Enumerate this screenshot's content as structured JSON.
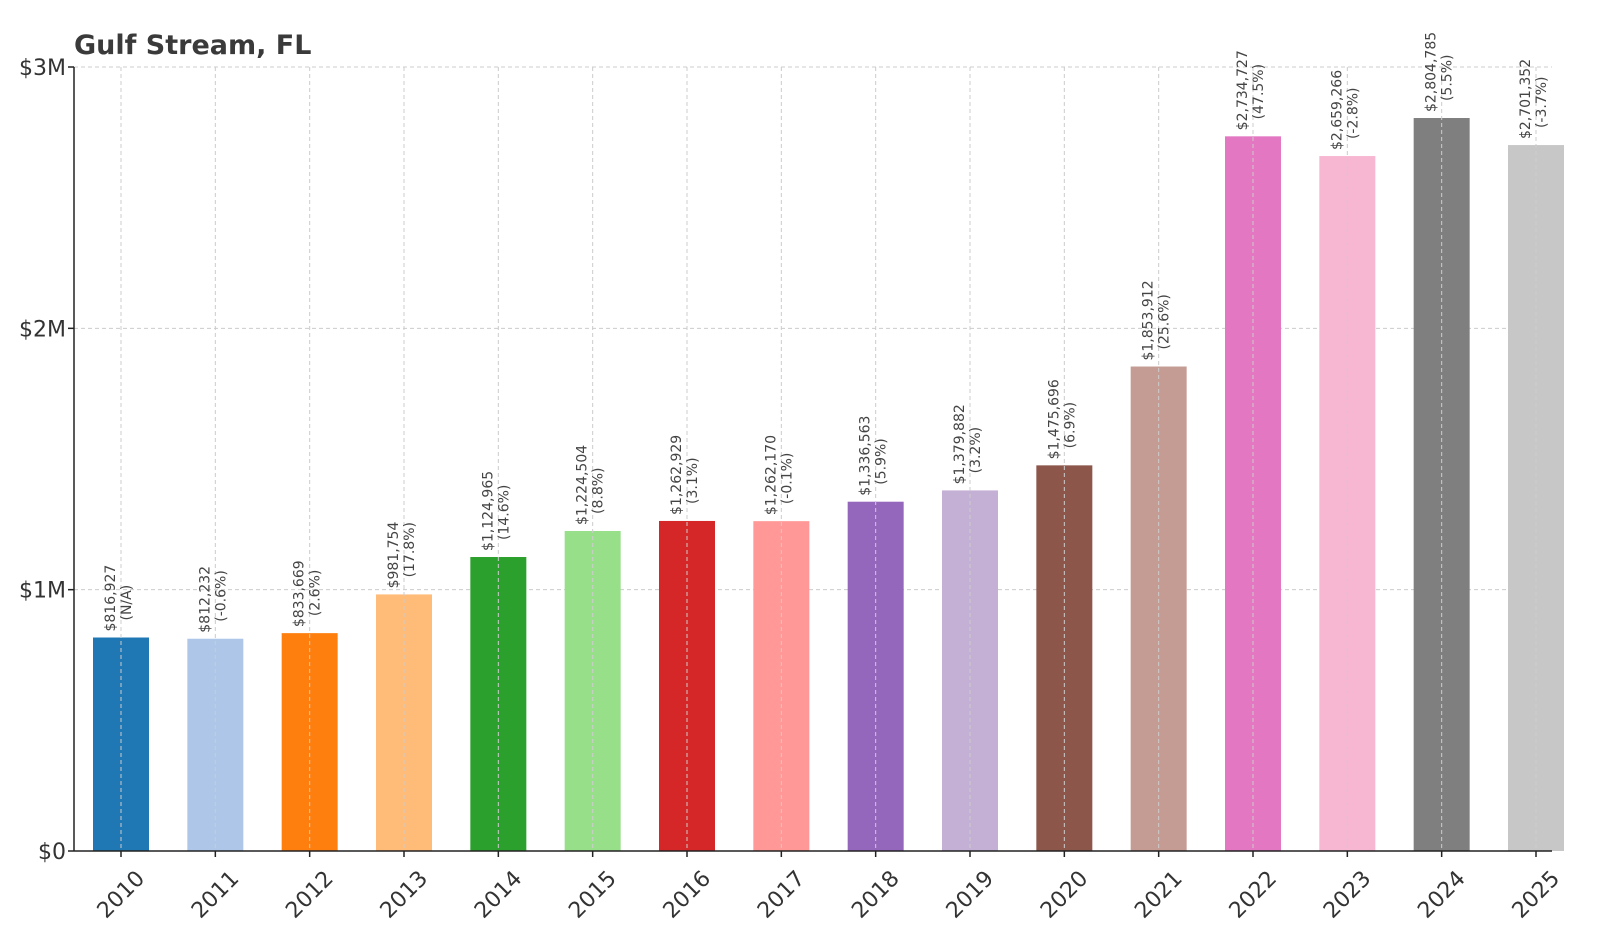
{
  "chart_data": {
    "type": "bar",
    "title": "Gulf Stream, FL",
    "xlabel": "",
    "ylabel": "",
    "categories": [
      "2010",
      "2011",
      "2012",
      "2013",
      "2014",
      "2015",
      "2016",
      "2017",
      "2018",
      "2019",
      "2020",
      "2021",
      "2022",
      "2023",
      "2024",
      "2025"
    ],
    "values": [
      816927,
      812232,
      833669,
      981754,
      1124965,
      1224504,
      1262929,
      1262170,
      1336563,
      1379882,
      1475696,
      1853912,
      2734727,
      2659266,
      2804785,
      2701352
    ],
    "value_labels": [
      "$816,927",
      "$812,232",
      "$833,669",
      "$981,754",
      "$1,124,965",
      "$1,224,504",
      "$1,262,929",
      "$1,262,170",
      "$1,336,563",
      "$1,379,882",
      "$1,475,696",
      "$1,853,912",
      "$2,734,727",
      "$2,659,266",
      "$2,804,785",
      "$2,701,352"
    ],
    "change_labels": [
      "(N/A)",
      "(-0.6%)",
      "(2.6%)",
      "(17.8%)",
      "(14.6%)",
      "(8.8%)",
      "(3.1%)",
      "(-0.1%)",
      "(5.9%)",
      "(3.2%)",
      "(6.9%)",
      "(25.6%)",
      "(47.5%)",
      "(-2.8%)",
      "(5.5%)",
      "(-3.7%)"
    ],
    "colors": [
      "#1f77b4",
      "#aec7e8",
      "#ff7f0e",
      "#ffbb78",
      "#2ca02c",
      "#98df8a",
      "#d62728",
      "#ff9896",
      "#9467bd",
      "#c5b0d5",
      "#8c564b",
      "#c49c94",
      "#e377c2",
      "#f7b6d2",
      "#7f7f7f",
      "#c7c7c7"
    ],
    "ylim": [
      0,
      3000000
    ],
    "yticks": [
      0,
      1000000,
      2000000,
      3000000
    ],
    "ytick_labels": [
      "$0",
      "$1M",
      "$2M",
      "$3M"
    ],
    "grid": true,
    "legend": "none"
  }
}
